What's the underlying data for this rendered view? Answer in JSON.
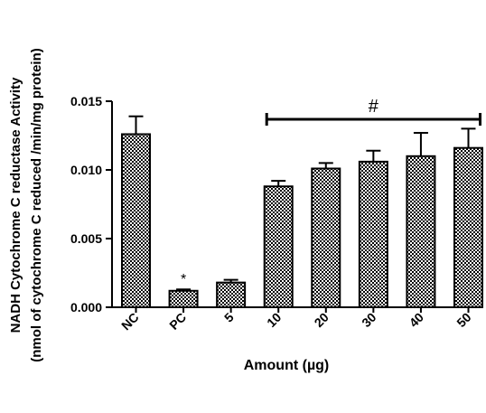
{
  "chart_data": {
    "type": "bar",
    "ylabel_line1": "NADH Cytochrome C reductase Activity",
    "ylabel_line2": "(nmol of cytochrome C reduced /min/mg protein)",
    "xlabel": "Amount (µg)",
    "categories": [
      "NC",
      "PC",
      "5",
      "10",
      "20",
      "30",
      "40",
      "50"
    ],
    "values": [
      0.0126,
      0.0012,
      0.0018,
      0.0088,
      0.0101,
      0.0106,
      0.011,
      0.0116
    ],
    "errors": [
      0.0013,
      0.0001,
      0.0002,
      0.0004,
      0.0004,
      0.0008,
      0.0017,
      0.0014
    ],
    "ylim": [
      0,
      0.015
    ],
    "yticks": [
      0.0,
      0.005,
      0.01,
      0.015
    ],
    "ytick_labels": [
      "0.000",
      "0.005",
      "0.010",
      "0.015"
    ],
    "annotations": {
      "star": {
        "text": "*",
        "category": "PC"
      },
      "hash": {
        "text": "#",
        "from": "10",
        "to": "50"
      }
    }
  }
}
